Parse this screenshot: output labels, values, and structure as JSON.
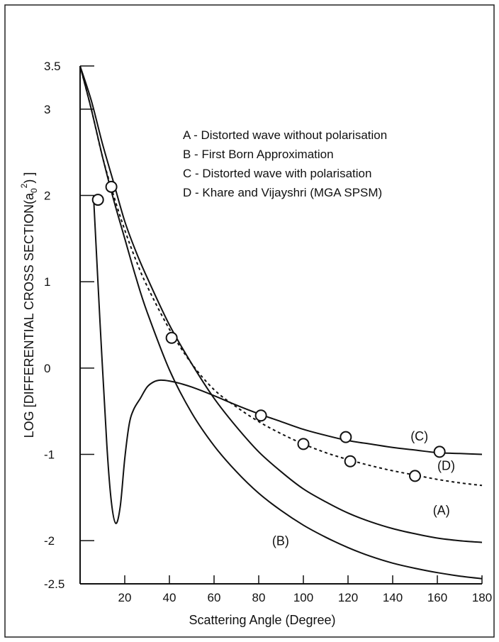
{
  "chart_data": {
    "type": "line",
    "title": "",
    "xlabel": "Scattering Angle (Degree)",
    "ylabel_main": "LOG [DIFFERENTIAL CROSS SECTION(a",
    "ylabel_sub": "0",
    "ylabel_sup": "2",
    "ylabel_end": ") ]",
    "xlim": [
      0,
      180
    ],
    "ylim": [
      -2.5,
      3.5
    ],
    "x_ticks": [
      20,
      40,
      60,
      80,
      100,
      120,
      140,
      160,
      180
    ],
    "x_tick_labels": [
      "20",
      "40",
      "60",
      "80",
      "100",
      "120",
      "140",
      "160",
      "180"
    ],
    "y_ticks": [
      3.5,
      3,
      2,
      1,
      0,
      -1,
      -2,
      -2.5
    ],
    "y_tick_labels": [
      "3.5",
      "3",
      "2",
      "1",
      "0",
      "-1",
      "-2",
      "-2.5"
    ],
    "legend": [
      "A - Distorted wave without polarisation",
      "B - First Born Approximation",
      "C - Distorted wave with polarisation",
      "D - Khare and Vijayshri (MGA SPSM)"
    ],
    "legend_position": "top-right",
    "grid": false,
    "series": [
      {
        "name": "(A)",
        "style": "solid",
        "x": [
          0,
          5,
          10,
          15,
          20,
          25,
          30,
          40,
          50,
          60,
          70,
          80,
          90,
          100,
          110,
          120,
          130,
          140,
          150,
          160,
          170,
          180
        ],
        "y": [
          3.5,
          3.1,
          2.6,
          2.15,
          1.7,
          1.35,
          1.05,
          0.5,
          0.05,
          -0.35,
          -0.68,
          -0.97,
          -1.2,
          -1.4,
          -1.55,
          -1.68,
          -1.78,
          -1.86,
          -1.92,
          -1.97,
          -2.0,
          -2.02
        ]
      },
      {
        "name": "(B)",
        "style": "solid",
        "x": [
          0,
          5,
          10,
          15,
          20,
          25,
          30,
          40,
          50,
          60,
          70,
          80,
          90,
          100,
          110,
          120,
          130,
          140,
          150,
          160,
          170,
          180
        ],
        "y": [
          3.5,
          3.0,
          2.45,
          1.95,
          1.5,
          1.05,
          0.65,
          -0.02,
          -0.52,
          -0.9,
          -1.2,
          -1.45,
          -1.65,
          -1.82,
          -1.96,
          -2.08,
          -2.18,
          -2.26,
          -2.32,
          -2.37,
          -2.41,
          -2.44
        ]
      },
      {
        "name": "(C)",
        "style": "solid",
        "x": [
          6,
          9,
          12,
          14,
          16,
          18,
          20,
          22,
          24,
          27,
          30,
          33,
          36,
          40,
          45,
          50,
          60,
          70,
          80,
          90,
          100,
          110,
          120,
          130,
          140,
          150,
          160,
          170,
          180
        ],
        "y": [
          2.0,
          0.5,
          -0.9,
          -1.55,
          -1.8,
          -1.6,
          -1.05,
          -0.65,
          -0.48,
          -0.35,
          -0.22,
          -0.16,
          -0.14,
          -0.15,
          -0.18,
          -0.22,
          -0.32,
          -0.43,
          -0.53,
          -0.62,
          -0.71,
          -0.78,
          -0.84,
          -0.88,
          -0.92,
          -0.95,
          -0.98,
          -0.99,
          -1.0
        ]
      },
      {
        "name": "(D)",
        "style": "dashed",
        "x": [
          0,
          5,
          10,
          15,
          20,
          25,
          30,
          40,
          50,
          60,
          70,
          80,
          90,
          100,
          110,
          120,
          130,
          140,
          150,
          160,
          170,
          180
        ],
        "y": [
          3.5,
          3.0,
          2.45,
          2.0,
          1.6,
          1.25,
          0.95,
          0.45,
          0.05,
          -0.25,
          -0.45,
          -0.62,
          -0.76,
          -0.88,
          -0.98,
          -1.06,
          -1.13,
          -1.19,
          -1.24,
          -1.29,
          -1.33,
          -1.36
        ]
      }
    ],
    "points": [
      {
        "x": 8,
        "y": 1.95
      },
      {
        "x": 14,
        "y": 2.1
      },
      {
        "x": 41,
        "y": 0.35
      },
      {
        "x": 81,
        "y": -0.55
      },
      {
        "x": 100,
        "y": -0.88
      },
      {
        "x": 119,
        "y": -0.8
      },
      {
        "x": 121,
        "y": -1.08
      },
      {
        "x": 150,
        "y": -1.25
      },
      {
        "x": 161,
        "y": -0.97
      }
    ],
    "curve_labels": [
      {
        "text": "(C)",
        "x": 148,
        "y": -0.84
      },
      {
        "text": "(D)",
        "x": 160,
        "y": -1.18
      },
      {
        "text": "(A)",
        "x": 158,
        "y": -1.7
      },
      {
        "text": "(B)",
        "x": 86,
        "y": -2.05
      }
    ]
  }
}
